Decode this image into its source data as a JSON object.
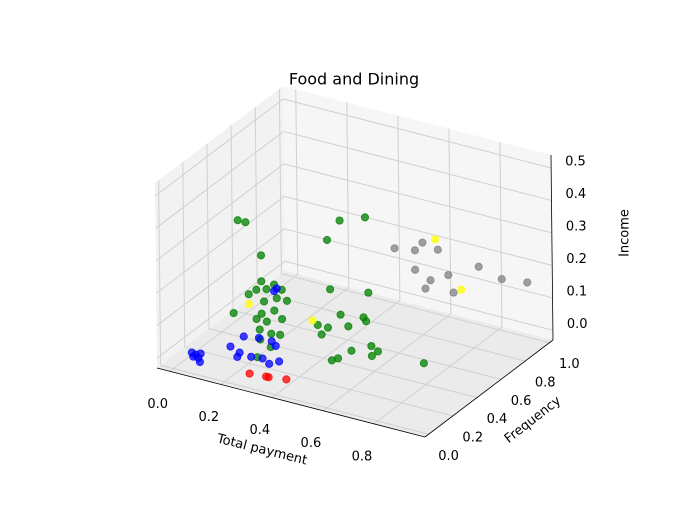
{
  "chart_data": {
    "type": "scatter3d",
    "title": "Food and Dining",
    "xlabel": "Total payment",
    "ylabel": "Frequency",
    "zlabel": "Income",
    "xlim": [
      -0.05,
      1.0
    ],
    "ylim": [
      -0.03,
      1.03
    ],
    "zlim": [
      -0.03,
      0.54
    ],
    "xticks": [
      {
        "value": 0,
        "label": "0.0"
      },
      0.2,
      0.4,
      0.6,
      0.8
    ],
    "yticks": [
      {
        "value": 0,
        "label": "0.0"
      },
      0.2,
      0.4,
      0.6,
      0.8,
      {
        "value": 1,
        "label": "1.0"
      }
    ],
    "zticks": [
      {
        "value": 0,
        "label": "0.0"
      },
      0.1,
      0.2,
      0.3,
      0.4,
      0.5
    ],
    "grid": true,
    "series": [
      {
        "color": "#008000",
        "x": [
          0.02,
          0.05,
          0.42,
          0.52,
          0.37,
          0.11,
          0.11,
          0.09,
          0.13,
          0.16,
          0.19,
          0.06,
          0.12,
          0.17,
          0.21,
          0.11,
          0.16,
          0.0,
          0.09,
          0.13,
          0.19,
          0.33,
          0.37,
          0.42,
          0.45,
          0.51,
          0.52,
          0.38,
          0.53,
          0.14,
          0.19,
          0.18,
          0.22,
          0.24,
          0.24,
          0.34,
          0.48,
          0.47,
          0.49,
          0.53,
          0.57,
          0.57,
          0.75
        ],
        "y": [
          0.5,
          0.5,
          0.5,
          0.5,
          0.5,
          0.5,
          0.5,
          0.5,
          0.5,
          0.5,
          0.5,
          0.5,
          0.5,
          0.5,
          0.5,
          0.5,
          0.5,
          0.5,
          0.5,
          0.5,
          0.5,
          0.5,
          0.5,
          0.5,
          0.5,
          0.5,
          0.5,
          0.5,
          0.5,
          0.42,
          0.41,
          0.34,
          0.42,
          0.3,
          0.19,
          0.51,
          0.35,
          0.32,
          0.44,
          0.52,
          0.49,
          0.44,
          0.49
        ],
        "z": [
          0.29,
          0.29,
          0.37,
          0.4,
          0.3,
          0.2,
          0.12,
          0.09,
          0.1,
          0.12,
          0.11,
          0.07,
          0.06,
          0.08,
          0.08,
          0.02,
          0.04,
          0.0,
          0.0,
          0.0,
          0.02,
          0.03,
          0.03,
          0.08,
          0.05,
          0.09,
          0.08,
          0.15,
          0.17,
          0,
          0,
          0,
          0,
          0,
          0,
          0,
          0,
          0,
          0,
          0,
          0,
          0,
          0
        ]
      },
      {
        "color": "#0000ff",
        "x": [
          0.03,
          0.05,
          0.07,
          0.09,
          0.05,
          0.06,
          0.12,
          0.17,
          0.18,
          0.12,
          0.17,
          0.22,
          0.25,
          0.26,
          0.3,
          0.32,
          0.22,
          0.16,
          0.17
        ],
        "y": [
          0.09,
          0.08,
          0.06,
          0.03,
          0.06,
          0.1,
          0.22,
          0.19,
          0.15,
          0.33,
          0.35,
          0.35,
          0.32,
          0.19,
          0.16,
          0.2,
          0.18,
          0.5,
          0.5
        ],
        "z": [
          0,
          0,
          0,
          0,
          0,
          0,
          0,
          0,
          0,
          0,
          0,
          0,
          0,
          0,
          0,
          0,
          0,
          0.1,
          0.11
        ]
      },
      {
        "color": "#ff0000",
        "x": [
          0.28,
          0.34,
          0.35,
          0.41
        ],
        "y": [
          0.04,
          0.05,
          0.05,
          0.07
        ],
        "z": [
          0,
          0,
          0,
          0
        ]
      },
      {
        "color": "#808080",
        "x": [
          0.41,
          0.49,
          0.52,
          0.58,
          0.49,
          0.55,
          0.53,
          0.62,
          0.64,
          0.74,
          0.83,
          0.93
        ],
        "y": [
          0.97,
          0.97,
          0.97,
          0.97,
          0.97,
          0.97,
          0.97,
          0.97,
          0.97,
          0.97,
          0.97,
          0.97
        ],
        "z": [
          0.15,
          0.16,
          0.19,
          0.18,
          0.1,
          0.08,
          0.05,
          0.11,
          0.06,
          0.16,
          0.14,
          0.15
        ]
      },
      {
        "color": "#ffff00",
        "x": [
          0.57,
          0.67,
          0.06,
          0.31
        ],
        "y": [
          0.97,
          0.97,
          0.5,
          0.5
        ],
        "z": [
          0.21,
          0.075,
          0.04,
          0.04
        ]
      }
    ]
  }
}
